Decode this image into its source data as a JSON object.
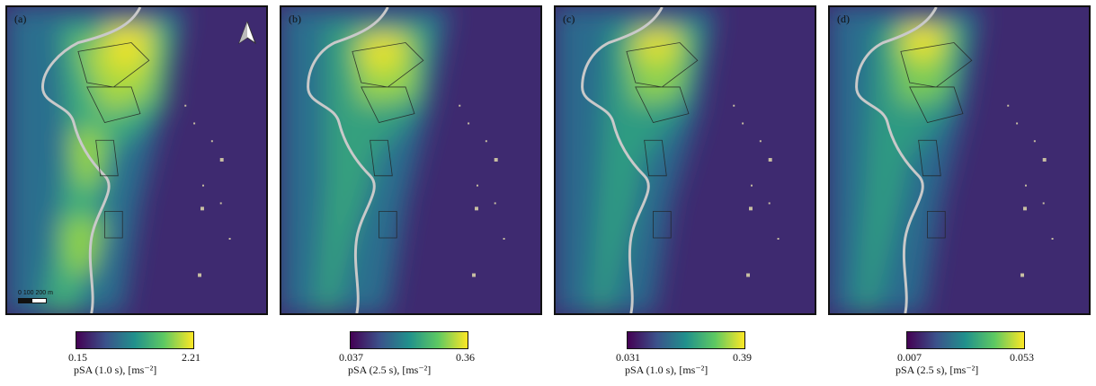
{
  "panels": [
    {
      "label": "(a)",
      "cbar_min": "0.15",
      "cbar_max": "2.21",
      "cbar_title": "pSA (1.0 s), [ms⁻²]"
    },
    {
      "label": "(b)",
      "cbar_min": "0.037",
      "cbar_max": "0.36",
      "cbar_title": "pSA (2.5 s), [ms⁻²]"
    },
    {
      "label": "(c)",
      "cbar_min": "0.031",
      "cbar_max": "0.39",
      "cbar_title": "pSA (1.0 s), [ms⁻²]"
    },
    {
      "label": "(d)",
      "cbar_min": "0.007",
      "cbar_max": "0.053",
      "cbar_title": "pSA (2.5 s), [ms⁻²]"
    }
  ],
  "scalebar": {
    "text": "0  100 200 m"
  },
  "colormap": [
    "#440154",
    "#3b528b",
    "#21918c",
    "#5ec962",
    "#fde725"
  ],
  "north_arrow_icon": "north-arrow-icon"
}
